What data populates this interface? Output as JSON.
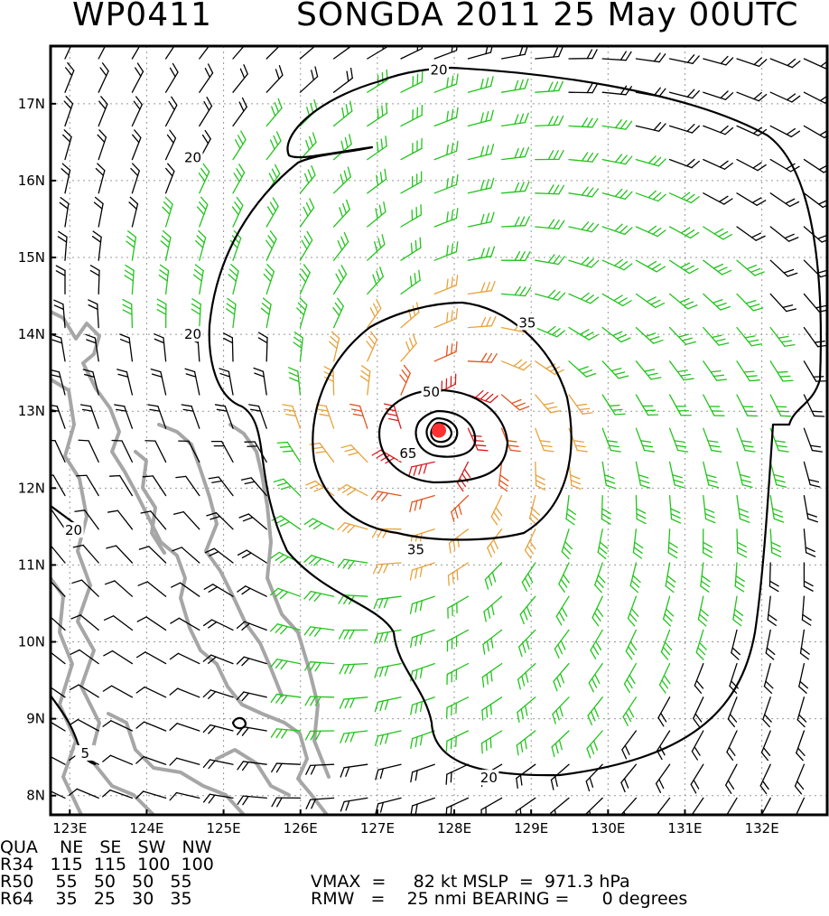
{
  "header": {
    "storm_id": "WP0411",
    "title": "SONGDA 2011 25 May 00UTC"
  },
  "map": {
    "lat_labels": [
      "17N",
      "16N",
      "15N",
      "14N",
      "13N",
      "12N",
      "11N",
      "10N",
      "9N",
      "8N"
    ],
    "lon_labels": [
      "123E",
      "124E",
      "125E",
      "126E",
      "127E",
      "128E",
      "129E",
      "130E",
      "131E",
      "132E"
    ],
    "lat_values": [
      17,
      16,
      15,
      14,
      13,
      12,
      11,
      10,
      9,
      8
    ],
    "lon_values": [
      123,
      124,
      125,
      126,
      127,
      128,
      129,
      130,
      131,
      132
    ],
    "lat_range": [
      7.75,
      17.75
    ],
    "lon_range": [
      122.75,
      132.85
    ],
    "center": {
      "lat": 12.75,
      "lon": 127.8
    },
    "contour_labels": [
      {
        "text": "20",
        "lat": 17.44,
        "lon": 127.8
      },
      {
        "text": "20",
        "lat": 16.3,
        "lon": 124.6
      },
      {
        "text": "20",
        "lat": 14.0,
        "lon": 124.6
      },
      {
        "text": "20",
        "lat": 11.45,
        "lon": 123.05
      },
      {
        "text": "20",
        "lat": 8.23,
        "lon": 128.45
      },
      {
        "text": "35",
        "lat": 14.15,
        "lon": 128.95
      },
      {
        "text": "35",
        "lat": 11.2,
        "lon": 127.5
      },
      {
        "text": "50",
        "lat": 13.25,
        "lon": 127.7
      },
      {
        "text": "65",
        "lat": 12.45,
        "lon": 127.4
      },
      {
        "text": "5",
        "lat": 8.55,
        "lon": 123.2
      }
    ],
    "colors": {
      "calm": "#000000",
      "r34": "#22c41c",
      "r50": "#e8a23a",
      "r64": "#e3541e",
      "core": "#d81e1e",
      "center": "#ff3030",
      "land": "#a6a6a6"
    }
  },
  "stats": {
    "quadrant_header": "QUA    NE   SE   SW   NW",
    "r34": "R34   115  115  100  100",
    "r50": "R50    55   50   50   55",
    "r64": "R64    35   25   30   35",
    "vmax_line": "VMAX  =     82 kt MSLP  =  971.3 hPa",
    "rmw_line": "RMW   =    25 nmi BEARING =      0 degrees"
  }
}
